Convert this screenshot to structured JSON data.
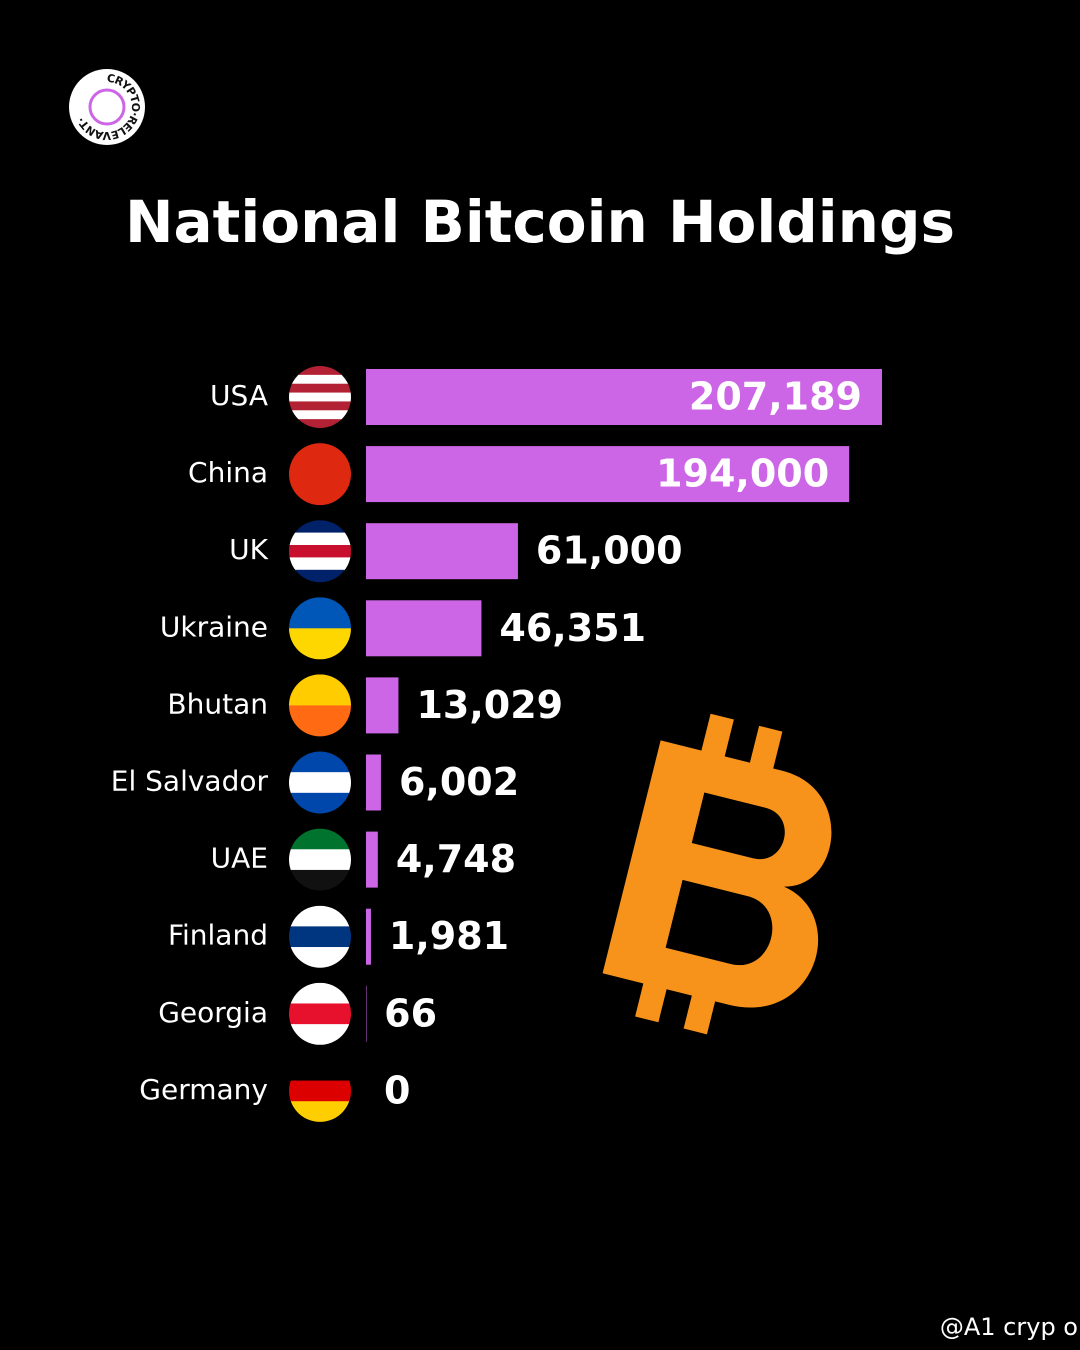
{
  "chart_data": {
    "type": "bar",
    "orientation": "horizontal",
    "title": "National Bitcoin Holdings",
    "logo_text": "CRYPTO·RELEVANT·",
    "watermark": "@A1 cryp o",
    "categories": [
      "USA",
      "China",
      "UK",
      "Ukraine",
      "Bhutan",
      "El Salvador",
      "UAE",
      "Finland",
      "Georgia",
      "Germany"
    ],
    "values": [
      207189,
      194000,
      61000,
      46351,
      13029,
      6002,
      4748,
      1981,
      66,
      0
    ],
    "value_labels": [
      "207,189",
      "194,000",
      "61,000",
      "46,351",
      "13,029",
      "6,002",
      "4,748",
      "1,981",
      "66",
      "0"
    ],
    "color": "#cc66e6"
  }
}
